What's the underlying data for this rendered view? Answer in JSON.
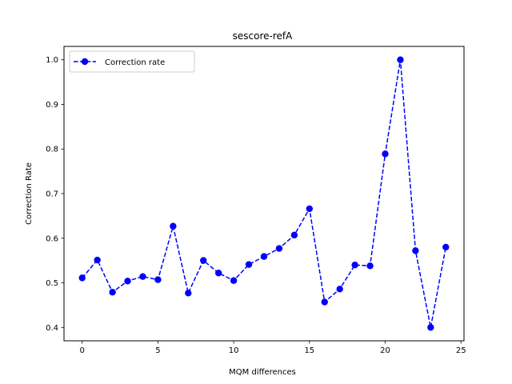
{
  "chart_data": {
    "type": "line",
    "title": "sescore-refA",
    "xlabel": "MQM differences",
    "ylabel": "Correction Rate",
    "xlim": [
      -1.2,
      25.2
    ],
    "ylim": [
      0.37,
      1.03
    ],
    "xticks": [
      0,
      5,
      10,
      15,
      20,
      25
    ],
    "yticks": [
      0.4,
      0.5,
      0.6,
      0.7,
      0.8,
      0.9,
      1.0
    ],
    "grid": false,
    "legend_position": "top-left",
    "series": [
      {
        "name": "Correction rate",
        "color": "#0000ff",
        "line_style": "dashed",
        "marker": "circle",
        "x": [
          0,
          1,
          2,
          3,
          4,
          5,
          6,
          7,
          8,
          9,
          10,
          11,
          12,
          13,
          14,
          15,
          16,
          17,
          18,
          19,
          20,
          21,
          22,
          23,
          24
        ],
        "y": [
          0.511,
          0.551,
          0.479,
          0.504,
          0.514,
          0.507,
          0.627,
          0.477,
          0.55,
          0.522,
          0.505,
          0.541,
          0.559,
          0.577,
          0.607,
          0.666,
          0.457,
          0.486,
          0.54,
          0.538,
          0.789,
          1.0,
          0.572,
          0.4,
          0.58
        ]
      }
    ]
  }
}
